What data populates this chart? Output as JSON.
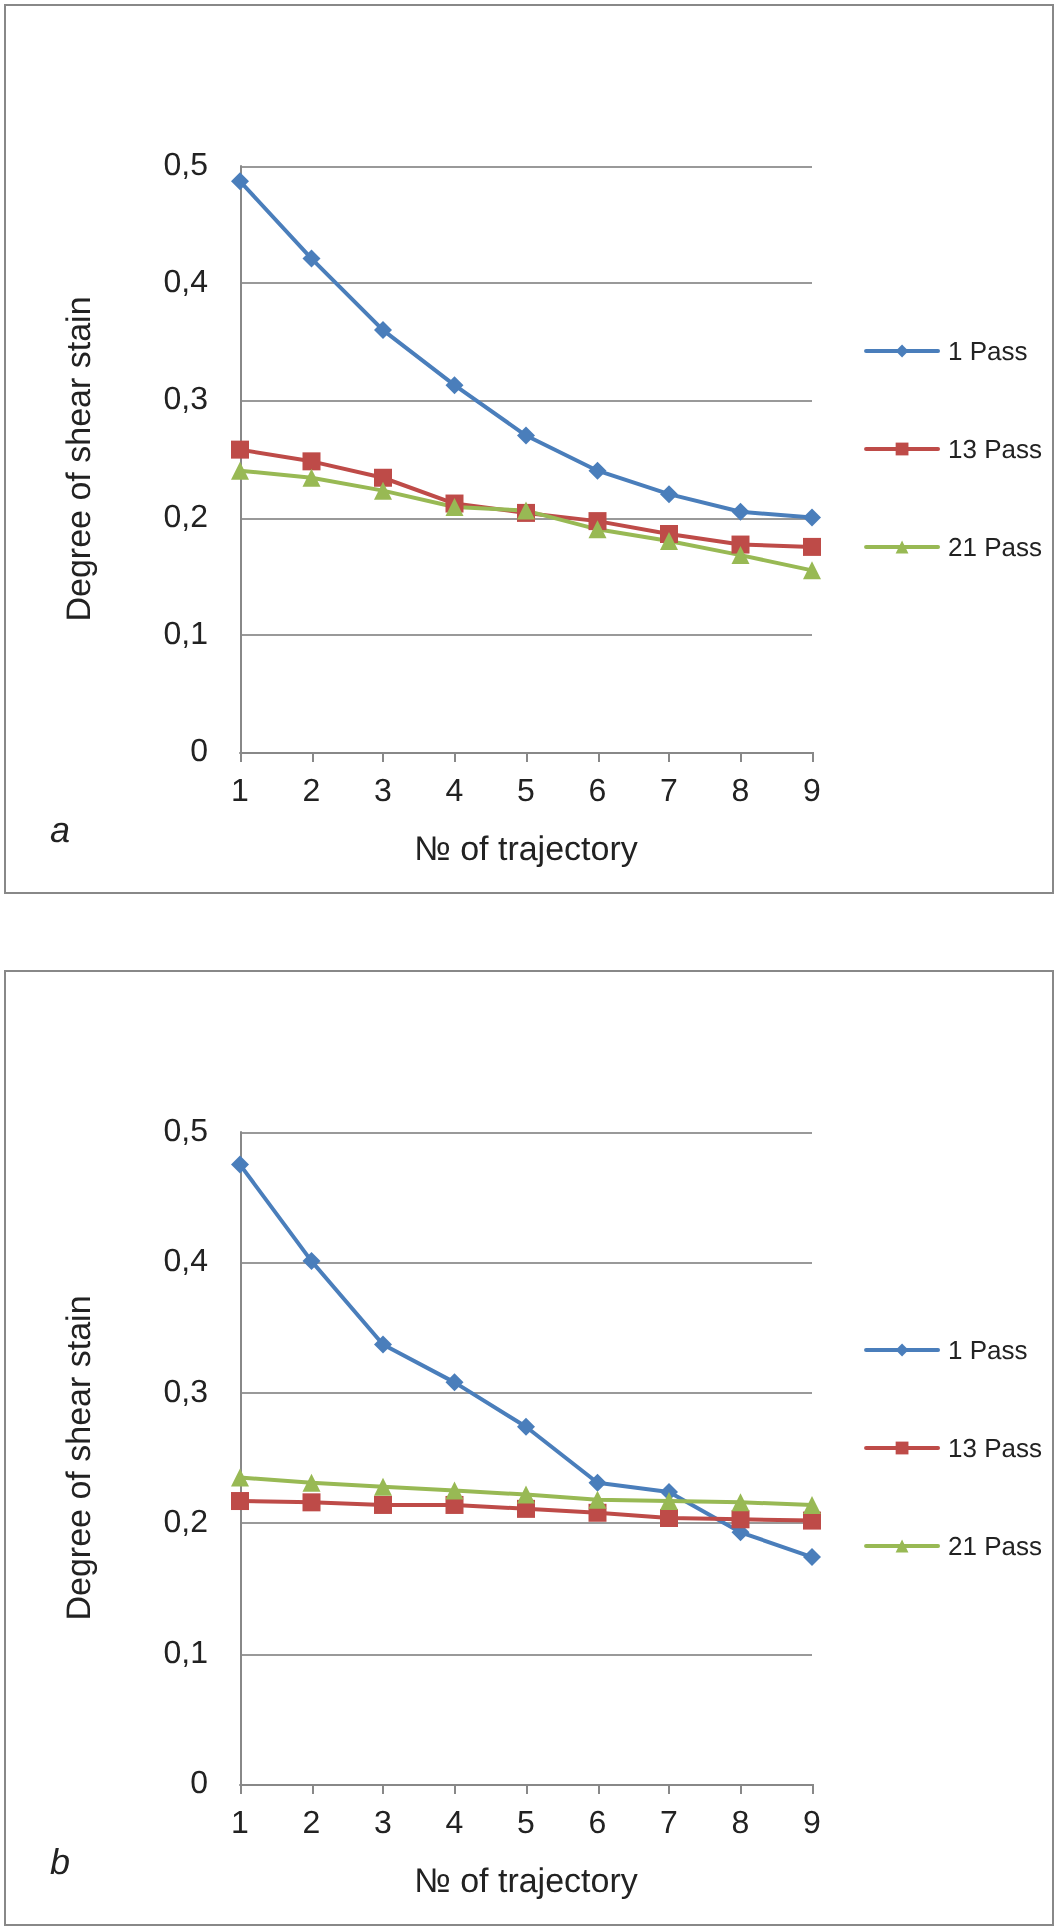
{
  "chart_data": [
    {
      "type": "line",
      "xlabel": "№ of trajectory",
      "ylabel": "Degree of shear stain",
      "annotations": [
        "a"
      ],
      "categories": [
        "1",
        "2",
        "3",
        "4",
        "5",
        "6",
        "7",
        "8",
        "9"
      ],
      "ylim": [
        0,
        0.5
      ],
      "yticks": [
        {
          "value": 0,
          "label": "0"
        },
        {
          "value": 0.1,
          "label": "0,1"
        },
        {
          "value": 0.2,
          "label": "0,2"
        },
        {
          "value": 0.3,
          "label": "0,3"
        },
        {
          "value": 0.4,
          "label": "0,4"
        },
        {
          "value": 0.5,
          "label": "0,5"
        }
      ],
      "grid": "y",
      "legend": "right",
      "series": [
        {
          "name": "1 Pass",
          "color": "#4a7ebb",
          "marker": "diamond",
          "values": [
            0.487,
            0.421,
            0.36,
            0.313,
            0.27,
            0.24,
            0.22,
            0.205,
            0.2
          ]
        },
        {
          "name": "13 Pass",
          "color": "#be4b48",
          "marker": "square",
          "values": [
            0.258,
            0.248,
            0.234,
            0.212,
            0.204,
            0.197,
            0.186,
            0.177,
            0.175
          ]
        },
        {
          "name": "21 Pass",
          "color": "#98b954",
          "marker": "triangle",
          "values": [
            0.24,
            0.234,
            0.223,
            0.209,
            0.206,
            0.19,
            0.18,
            0.168,
            0.155
          ]
        }
      ]
    },
    {
      "type": "line",
      "xlabel": "№ of trajectory",
      "ylabel": "Degree of shear stain",
      "annotations": [
        "b"
      ],
      "categories": [
        "1",
        "2",
        "3",
        "4",
        "5",
        "6",
        "7",
        "8",
        "9"
      ],
      "ylim": [
        0,
        0.5
      ],
      "yticks": [
        {
          "value": 0,
          "label": "0"
        },
        {
          "value": 0.1,
          "label": "0,1"
        },
        {
          "value": 0.2,
          "label": "0,2"
        },
        {
          "value": 0.3,
          "label": "0,3"
        },
        {
          "value": 0.4,
          "label": "0,4"
        },
        {
          "value": 0.5,
          "label": "0,5"
        }
      ],
      "grid": "y",
      "legend": "right",
      "series": [
        {
          "name": "1 Pass",
          "color": "#4a7ebb",
          "marker": "diamond",
          "values": [
            0.475,
            0.401,
            0.337,
            0.308,
            0.274,
            0.231,
            0.224,
            0.193,
            0.174
          ]
        },
        {
          "name": "13 Pass",
          "color": "#be4b48",
          "marker": "square",
          "values": [
            0.217,
            0.216,
            0.214,
            0.214,
            0.211,
            0.208,
            0.204,
            0.203,
            0.202
          ]
        },
        {
          "name": "21 Pass",
          "color": "#98b954",
          "marker": "triangle",
          "values": [
            0.235,
            0.231,
            0.228,
            0.225,
            0.222,
            0.218,
            0.217,
            0.216,
            0.214
          ]
        }
      ]
    }
  ]
}
